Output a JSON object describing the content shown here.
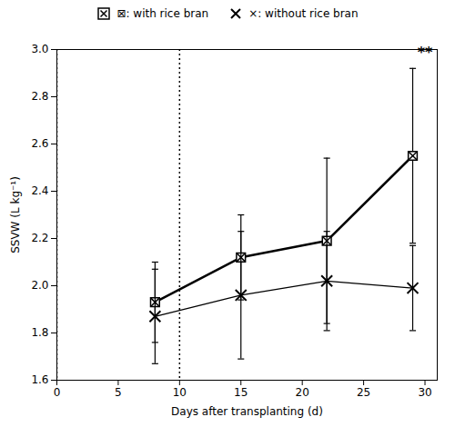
{
  "chart_data": {
    "type": "line",
    "x": [
      8,
      15,
      22,
      29
    ],
    "series": [
      {
        "name": "⊠: with rice bran",
        "color": "#000000",
        "marker": "square_x",
        "line_style": "solid",
        "values": [
          1.93,
          2.12,
          2.19,
          2.55
        ],
        "errors": [
          0.17,
          0.18,
          0.35,
          0.37
        ]
      },
      {
        "name": "×: without rice bran",
        "color": "#000000",
        "marker": "x",
        "line_style": "solid",
        "values": [
          1.87,
          1.96,
          2.02,
          1.99
        ],
        "errors": [
          0.2,
          0.27,
          0.21,
          0.18
        ]
      }
    ],
    "xlabel": "Days after transplanting (d)",
    "ylabel": "SSVW (L kg⁻¹)",
    "xlim": [
      0,
      31
    ],
    "ylim": [
      1.6,
      3.0
    ],
    "xticks": [
      0,
      5,
      10,
      15,
      20,
      25,
      30
    ],
    "yticks": [
      1.6,
      1.8,
      {
        "value": 2.0,
        "label": "2.0"
      },
      2.2,
      2.4,
      2.6,
      2.8,
      {
        "value": 3.0,
        "label": "3.0"
      }
    ],
    "vlines": [
      0,
      10
    ],
    "annotations": [
      {
        "text": "**",
        "x": 30.0,
        "y": 3.01
      }
    ],
    "legend": "upper center",
    "grid": false
  }
}
